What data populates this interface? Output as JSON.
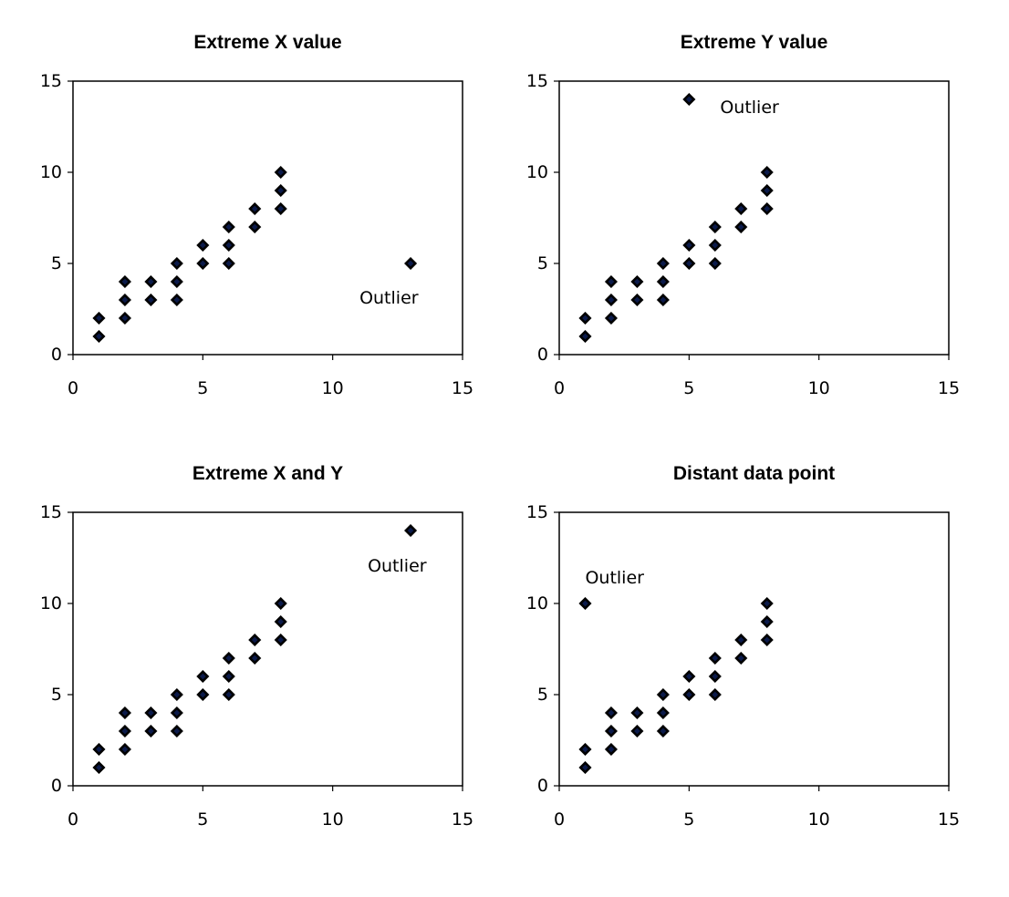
{
  "chart_data": [
    {
      "type": "scatter",
      "title": "Extreme X value",
      "xlabel": "",
      "ylabel": "",
      "xlim": [
        0,
        15
      ],
      "ylim": [
        0,
        15
      ],
      "xticks": [
        "0",
        "5",
        "10",
        "15"
      ],
      "yticks": [
        "0",
        "5",
        "10",
        "15"
      ],
      "grid": false,
      "marker": "diamond",
      "points": [
        {
          "x": 1,
          "y": 1
        },
        {
          "x": 1,
          "y": 2
        },
        {
          "x": 2,
          "y": 2
        },
        {
          "x": 2,
          "y": 3
        },
        {
          "x": 2,
          "y": 4
        },
        {
          "x": 3,
          "y": 3
        },
        {
          "x": 3,
          "y": 4
        },
        {
          "x": 4,
          "y": 3
        },
        {
          "x": 4,
          "y": 4
        },
        {
          "x": 4,
          "y": 5
        },
        {
          "x": 5,
          "y": 5
        },
        {
          "x": 5,
          "y": 6
        },
        {
          "x": 6,
          "y": 5
        },
        {
          "x": 6,
          "y": 6
        },
        {
          "x": 6,
          "y": 7
        },
        {
          "x": 7,
          "y": 7
        },
        {
          "x": 7,
          "y": 8
        },
        {
          "x": 8,
          "y": 8
        },
        {
          "x": 8,
          "y": 9
        },
        {
          "x": 8,
          "y": 10
        },
        {
          "x": 13,
          "y": 5
        }
      ],
      "annotations": [
        {
          "text": "Outlier",
          "x": 13,
          "y": 5,
          "placement": "below-left"
        }
      ]
    },
    {
      "type": "scatter",
      "title": "Extreme Y value",
      "xlabel": "",
      "ylabel": "",
      "xlim": [
        0,
        15
      ],
      "ylim": [
        0,
        15
      ],
      "xticks": [
        "0",
        "5",
        "10",
        "15"
      ],
      "yticks": [
        "0",
        "5",
        "10",
        "15"
      ],
      "grid": false,
      "marker": "diamond",
      "points": [
        {
          "x": 1,
          "y": 1
        },
        {
          "x": 1,
          "y": 2
        },
        {
          "x": 2,
          "y": 2
        },
        {
          "x": 2,
          "y": 3
        },
        {
          "x": 2,
          "y": 4
        },
        {
          "x": 3,
          "y": 3
        },
        {
          "x": 3,
          "y": 4
        },
        {
          "x": 4,
          "y": 3
        },
        {
          "x": 4,
          "y": 4
        },
        {
          "x": 4,
          "y": 5
        },
        {
          "x": 5,
          "y": 5
        },
        {
          "x": 5,
          "y": 6
        },
        {
          "x": 6,
          "y": 5
        },
        {
          "x": 6,
          "y": 6
        },
        {
          "x": 6,
          "y": 7
        },
        {
          "x": 7,
          "y": 7
        },
        {
          "x": 7,
          "y": 8
        },
        {
          "x": 8,
          "y": 8
        },
        {
          "x": 8,
          "y": 9
        },
        {
          "x": 8,
          "y": 10
        },
        {
          "x": 5,
          "y": 14
        }
      ],
      "annotations": [
        {
          "text": "Outlier",
          "x": 5,
          "y": 14,
          "placement": "right"
        }
      ]
    },
    {
      "type": "scatter",
      "title": "Extreme X and Y",
      "xlabel": "",
      "ylabel": "",
      "xlim": [
        0,
        15
      ],
      "ylim": [
        0,
        15
      ],
      "xticks": [
        "0",
        "5",
        "10",
        "15"
      ],
      "yticks": [
        "0",
        "5",
        "10",
        "15"
      ],
      "grid": false,
      "marker": "diamond",
      "points": [
        {
          "x": 1,
          "y": 1
        },
        {
          "x": 1,
          "y": 2
        },
        {
          "x": 2,
          "y": 2
        },
        {
          "x": 2,
          "y": 3
        },
        {
          "x": 2,
          "y": 4
        },
        {
          "x": 3,
          "y": 3
        },
        {
          "x": 3,
          "y": 4
        },
        {
          "x": 4,
          "y": 3
        },
        {
          "x": 4,
          "y": 4
        },
        {
          "x": 4,
          "y": 5
        },
        {
          "x": 5,
          "y": 5
        },
        {
          "x": 5,
          "y": 6
        },
        {
          "x": 6,
          "y": 5
        },
        {
          "x": 6,
          "y": 6
        },
        {
          "x": 6,
          "y": 7
        },
        {
          "x": 7,
          "y": 7
        },
        {
          "x": 7,
          "y": 8
        },
        {
          "x": 8,
          "y": 8
        },
        {
          "x": 8,
          "y": 9
        },
        {
          "x": 8,
          "y": 10
        },
        {
          "x": 13,
          "y": 14
        }
      ],
      "annotations": [
        {
          "text": "Outlier",
          "x": 13,
          "y": 14,
          "placement": "below"
        }
      ]
    },
    {
      "type": "scatter",
      "title": "Distant data point",
      "xlabel": "",
      "ylabel": "",
      "xlim": [
        0,
        15
      ],
      "ylim": [
        0,
        15
      ],
      "xticks": [
        "0",
        "5",
        "10",
        "15"
      ],
      "yticks": [
        "0",
        "5",
        "10",
        "15"
      ],
      "grid": false,
      "marker": "diamond",
      "points": [
        {
          "x": 1,
          "y": 1
        },
        {
          "x": 1,
          "y": 2
        },
        {
          "x": 2,
          "y": 2
        },
        {
          "x": 2,
          "y": 3
        },
        {
          "x": 2,
          "y": 4
        },
        {
          "x": 3,
          "y": 3
        },
        {
          "x": 3,
          "y": 4
        },
        {
          "x": 4,
          "y": 3
        },
        {
          "x": 4,
          "y": 4
        },
        {
          "x": 4,
          "y": 5
        },
        {
          "x": 5,
          "y": 5
        },
        {
          "x": 5,
          "y": 6
        },
        {
          "x": 6,
          "y": 5
        },
        {
          "x": 6,
          "y": 6
        },
        {
          "x": 6,
          "y": 7
        },
        {
          "x": 7,
          "y": 7
        },
        {
          "x": 7,
          "y": 8
        },
        {
          "x": 8,
          "y": 8
        },
        {
          "x": 8,
          "y": 9
        },
        {
          "x": 8,
          "y": 10
        },
        {
          "x": 1,
          "y": 10
        }
      ],
      "annotations": [
        {
          "text": "Outlier",
          "x": 1,
          "y": 10,
          "placement": "above-right"
        }
      ]
    }
  ],
  "colors": {
    "marker": "#000000",
    "frame": "#000000",
    "background": "#ffffff"
  }
}
